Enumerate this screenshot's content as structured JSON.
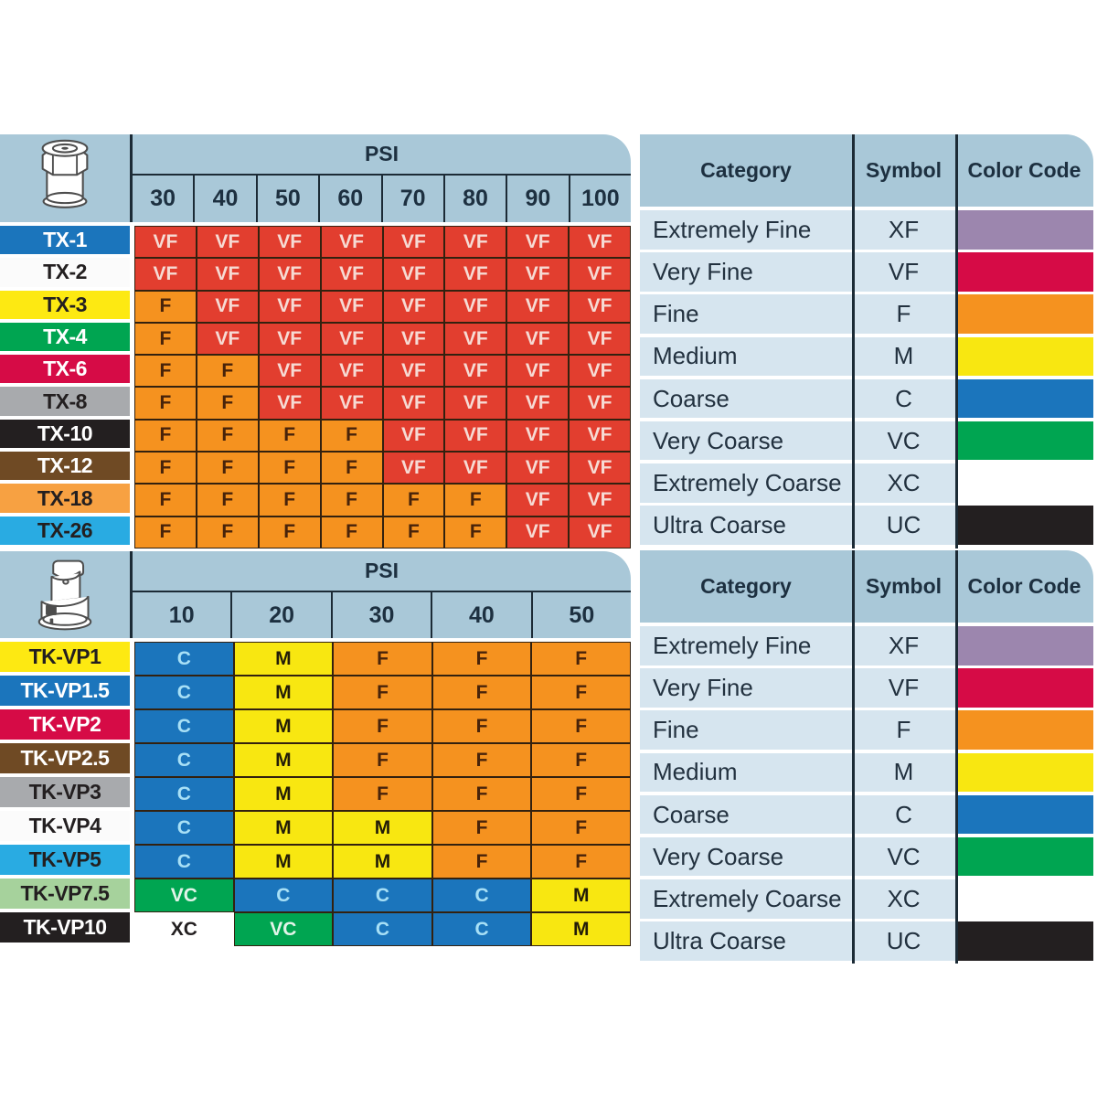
{
  "colors": {
    "header_blue": "#a9c8d8",
    "row_blue": "#d6e5ef",
    "divider_navy": "#1c2b36",
    "text_navy": "#1d3040",
    "cell_border": "#33210f"
  },
  "cell_styles": {
    "VF": {
      "bg": "#e23e2f",
      "fg": "#f6dbd4"
    },
    "F": {
      "bg": "#f5921f",
      "fg": "#48230a"
    },
    "M": {
      "bg": "#f8e711",
      "fg": "#221c08"
    },
    "C": {
      "bg": "#1b75bc",
      "fg": "#a8e0f6"
    },
    "VC": {
      "bg": "#00a551",
      "fg": "#e2f4e9"
    },
    "XC": {
      "bg": "#ffffff",
      "fg": "#231f20",
      "border": "#ffffff"
    }
  },
  "chart_data": [
    {
      "type": "table",
      "icon": "cone-spray-tip-icon",
      "psi_label": "PSI",
      "columns": [
        "30",
        "40",
        "50",
        "60",
        "70",
        "80",
        "90",
        "100"
      ],
      "rows": [
        {
          "label": "TX-1",
          "label_bg": "#1b75bc",
          "label_fg": "#ffffff",
          "values": [
            "VF",
            "VF",
            "VF",
            "VF",
            "VF",
            "VF",
            "VF",
            "VF"
          ]
        },
        {
          "label": "TX-2",
          "label_bg": "#fbfbfb",
          "label_fg": "#231f20",
          "values": [
            "VF",
            "VF",
            "VF",
            "VF",
            "VF",
            "VF",
            "VF",
            "VF"
          ]
        },
        {
          "label": "TX-3",
          "label_bg": "#fde912",
          "label_fg": "#231f20",
          "values": [
            "F",
            "VF",
            "VF",
            "VF",
            "VF",
            "VF",
            "VF",
            "VF"
          ]
        },
        {
          "label": "TX-4",
          "label_bg": "#00a551",
          "label_fg": "#ffffff",
          "values": [
            "F",
            "VF",
            "VF",
            "VF",
            "VF",
            "VF",
            "VF",
            "VF"
          ]
        },
        {
          "label": "TX-6",
          "label_bg": "#d60b46",
          "label_fg": "#ffffff",
          "values": [
            "F",
            "F",
            "VF",
            "VF",
            "VF",
            "VF",
            "VF",
            "VF"
          ]
        },
        {
          "label": "TX-8",
          "label_bg": "#a8aaad",
          "label_fg": "#231f20",
          "values": [
            "F",
            "F",
            "VF",
            "VF",
            "VF",
            "VF",
            "VF",
            "VF"
          ]
        },
        {
          "label": "TX-10",
          "label_bg": "#231f20",
          "label_fg": "#ffffff",
          "values": [
            "F",
            "F",
            "F",
            "F",
            "VF",
            "VF",
            "VF",
            "VF"
          ]
        },
        {
          "label": "TX-12",
          "label_bg": "#6f4a24",
          "label_fg": "#ffffff",
          "values": [
            "F",
            "F",
            "F",
            "F",
            "VF",
            "VF",
            "VF",
            "VF"
          ]
        },
        {
          "label": "TX-18",
          "label_bg": "#f7a142",
          "label_fg": "#231f20",
          "values": [
            "F",
            "F",
            "F",
            "F",
            "F",
            "F",
            "VF",
            "VF"
          ]
        },
        {
          "label": "TX-26",
          "label_bg": "#29abe2",
          "label_fg": "#231f20",
          "values": [
            "F",
            "F",
            "F",
            "F",
            "F",
            "F",
            "VF",
            "VF"
          ]
        }
      ]
    },
    {
      "type": "table",
      "icon": "quick-cap-spray-tip-icon",
      "psi_label": "PSI",
      "columns": [
        "10",
        "20",
        "30",
        "40",
        "50"
      ],
      "rows": [
        {
          "label": "TK-VP1",
          "label_bg": "#fde912",
          "label_fg": "#231f20",
          "values": [
            "C",
            "M",
            "F",
            "F",
            "F"
          ]
        },
        {
          "label": "TK-VP1.5",
          "label_bg": "#1b75bc",
          "label_fg": "#ffffff",
          "values": [
            "C",
            "M",
            "F",
            "F",
            "F"
          ]
        },
        {
          "label": "TK-VP2",
          "label_bg": "#d60b46",
          "label_fg": "#ffffff",
          "values": [
            "C",
            "M",
            "F",
            "F",
            "F"
          ]
        },
        {
          "label": "TK-VP2.5",
          "label_bg": "#6f4a24",
          "label_fg": "#ffffff",
          "values": [
            "C",
            "M",
            "F",
            "F",
            "F"
          ]
        },
        {
          "label": "TK-VP3",
          "label_bg": "#a8aaad",
          "label_fg": "#231f20",
          "values": [
            "C",
            "M",
            "F",
            "F",
            "F"
          ]
        },
        {
          "label": "TK-VP4",
          "label_bg": "#fbfbfb",
          "label_fg": "#231f20",
          "values": [
            "C",
            "M",
            "M",
            "F",
            "F"
          ]
        },
        {
          "label": "TK-VP5",
          "label_bg": "#29abe2",
          "label_fg": "#231f20",
          "values": [
            "C",
            "M",
            "M",
            "F",
            "F"
          ]
        },
        {
          "label": "TK-VP7.5",
          "label_bg": "#a6d29c",
          "label_fg": "#231f20",
          "values": [
            "VC",
            "C",
            "C",
            "C",
            "M"
          ]
        },
        {
          "label": "TK-VP10",
          "label_bg": "#231f20",
          "label_fg": "#ffffff",
          "values": [
            "XC",
            "VC",
            "C",
            "C",
            "M"
          ]
        }
      ]
    },
    {
      "type": "table",
      "headers": [
        "Category",
        "Symbol",
        "Color Code"
      ],
      "rows": [
        {
          "category": "Extremely Fine",
          "symbol": "XF",
          "color": "#9c86ae"
        },
        {
          "category": "Very Fine",
          "symbol": "VF",
          "color": "#d60b46"
        },
        {
          "category": "Fine",
          "symbol": "F",
          "color": "#f5921f"
        },
        {
          "category": "Medium",
          "symbol": "M",
          "color": "#f8e711"
        },
        {
          "category": "Coarse",
          "symbol": "C",
          "color": "#1b75bc"
        },
        {
          "category": "Very Coarse",
          "symbol": "VC",
          "color": "#00a551"
        },
        {
          "category": "Extremely Coarse",
          "symbol": "XC",
          "color": "#ffffff"
        },
        {
          "category": "Ultra Coarse",
          "symbol": "UC",
          "color": "#231f20"
        }
      ]
    }
  ]
}
